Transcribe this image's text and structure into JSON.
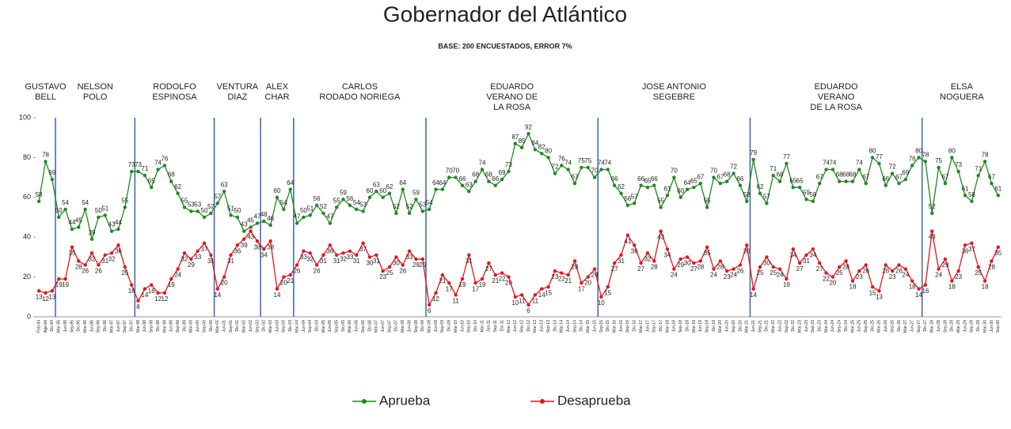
{
  "chart_data": {
    "type": "line",
    "title": "Gobernador del Atlántico",
    "subtitle": "BASE: 200 ENCUESTADOS, ERROR 7%",
    "periods": [
      [
        "GUSTAVO",
        "BELL"
      ],
      [
        "NELSON",
        "POLO"
      ],
      [
        "RODOLFO",
        "ESPINOSA"
      ],
      [
        "VENTURA",
        "DIAZ"
      ],
      [
        "ALEX",
        "CHAR"
      ],
      [
        "CARLOS",
        "RODADO NORIEGA"
      ],
      [
        "EDUARDO",
        "VERANO DE",
        "LA ROSA"
      ],
      [
        "JOSE ANTONIO",
        "SEGEBRE"
      ],
      [
        "EDUARDO",
        "VERANO",
        "DE LA ROSA"
      ],
      [
        "ELSA",
        "NOGUERA"
      ]
    ],
    "categories": [
      "Feb-94",
      "Ago-94",
      "Dic-94",
      "Mar-95",
      "Jun-95",
      "Sep-95",
      "Dic-95",
      "Mar-96",
      "Jun-96",
      "Sep-96",
      "Dic-96",
      "Mar-97",
      "Jun-97",
      "Sep-97",
      "Dic-97",
      "Mar-98",
      "Jun-98",
      "Sep-98",
      "Dic-98",
      "Mar-99",
      "Jun-99",
      "Sep-99",
      "Dic-99",
      "Mar-00",
      "Jun-00",
      "Sep-00",
      "Dic-00",
      "Mar-01",
      "Jun-01",
      "Sep-01",
      "Dic-01",
      "Mar-02",
      "Jun-02",
      "Sep-02",
      "Dic-02",
      "Mar-03",
      "Jun-03",
      "Sep-03",
      "Dic-03",
      "Mar-04",
      "Jun-04",
      "Sep-04",
      "Dic-04",
      "Mar-05",
      "Jun-05",
      "Sep-05",
      "Dic-05",
      "Mar-06",
      "Jun-06",
      "Sep-06",
      "Dic-06",
      "Mar-07",
      "Jun-07",
      "Sep-07",
      "Dic-07",
      "Mar-08",
      "Jun-08",
      "Sep-08",
      "Dic-08",
      "Mar-09",
      "Jun-09",
      "Sep-09",
      "Dic-09",
      "Mar-10",
      "Jun-10",
      "Sep-10",
      "Dic-10",
      "Mar-11",
      "Jun-11",
      "Sep-11",
      "Dic-11",
      "Mar-12",
      "Jun-12",
      "Sep-12",
      "Dic-12",
      "Mar-13",
      "Jun-13",
      "Sep-13",
      "Dic-13",
      "Mar-14",
      "Jun-14",
      "Sep-14",
      "Dic-14",
      "Mar-15",
      "Jun-15",
      "Sep-15",
      "Dic-15",
      "Mar-16",
      "Jun-16",
      "Sep-16",
      "Dic-16",
      "Mar-17",
      "Jun-17",
      "Sep-17",
      "Dic-17",
      "Mar-18",
      "Jun-18",
      "Sep-18",
      "Dic-18",
      "Mar-19",
      "Jun-19",
      "Sep-19",
      "Dic-19",
      "Mar-20",
      "Jun-20",
      "Sep-20",
      "Dic-20",
      "Mar-21",
      "Jun-21",
      "Sep-21",
      "Dic-21",
      "Mar-22",
      "Jun-22",
      "Sep-22",
      "Dic-22",
      "Mar-23",
      "Jun-23",
      "Sep-23",
      "Dic-23",
      "Mar-24",
      "Jun-24",
      "Sep-24",
      "Dic-24",
      "Mar-25",
      "Jun-25",
      "Sep-25",
      "Dic-25",
      "Mar-26",
      "Jun-26",
      "Sep-26",
      "Dic-26",
      "Mar-27",
      "Jun-27",
      "Sep-27",
      "Dic-27",
      "Mar-28",
      "Jun-28",
      "Sep-28",
      "Dic-28",
      "Mar-29",
      "Jun-29",
      "Sep-29",
      "Dic-29",
      "Mar-30",
      "Jun-30",
      "Sep-30"
    ],
    "series": [
      {
        "name": "Aprueba",
        "color": "#1e8a1e",
        "values": [
          58,
          78,
          69,
          50,
          54,
          44,
          45,
          54,
          39,
          50,
          51,
          43,
          44,
          55,
          73,
          73,
          71,
          65,
          74,
          76,
          68,
          62,
          55,
          53,
          53,
          50,
          52,
          57,
          63,
          51,
          50,
          43,
          45,
          47,
          48,
          46,
          60,
          54,
          64,
          47,
          50,
          51,
          56,
          52,
          47,
          55,
          59,
          56,
          54,
          53,
          60,
          63,
          60,
          62,
          52,
          64,
          52,
          59,
          53,
          54,
          64,
          64,
          70,
          70,
          66,
          63,
          68,
          74,
          68,
          66,
          69,
          73,
          87,
          85,
          92,
          84,
          82,
          80,
          72,
          76,
          74,
          67,
          75,
          75,
          70,
          74,
          74,
          66,
          62,
          56,
          57,
          66,
          65,
          66,
          55,
          61,
          70,
          60,
          64,
          65,
          67,
          55,
          70,
          67,
          68,
          72,
          66,
          58,
          79,
          62,
          57,
          71,
          68,
          77,
          65,
          65,
          59,
          58,
          67,
          74,
          74,
          68,
          68,
          68,
          74,
          67,
          80,
          77,
          66,
          72,
          67,
          69,
          76,
          80,
          78,
          52,
          75,
          67,
          80,
          73,
          61,
          58,
          71,
          78,
          67,
          61
        ]
      },
      {
        "name": "Desaprueba",
        "color": "#e8141a",
        "values": [
          13,
          12,
          13,
          19,
          19,
          35,
          28,
          26,
          32,
          26,
          31,
          32,
          36,
          25,
          16,
          8,
          14,
          16,
          12,
          12,
          19,
          24,
          32,
          29,
          33,
          37,
          31,
          14,
          20,
          31,
          36,
          39,
          43,
          38,
          34,
          38,
          14,
          20,
          21,
          26,
          33,
          32,
          26,
          31,
          36,
          31,
          32,
          33,
          31,
          37,
          30,
          31,
          23,
          25,
          30,
          26,
          33,
          29,
          29,
          6,
          12,
          21,
          17,
          11,
          19,
          31,
          17,
          19,
          27,
          21,
          22,
          20,
          10,
          11,
          6,
          11,
          14,
          15,
          23,
          22,
          21,
          28,
          17,
          20,
          24,
          10,
          15,
          27,
          31,
          41,
          36,
          27,
          32,
          28,
          43,
          34,
          24,
          29,
          30,
          27,
          28,
          35,
          24,
          28,
          23,
          24,
          26,
          36,
          14,
          25,
          30,
          25,
          24,
          19,
          34,
          27,
          31,
          34,
          27,
          22,
          20,
          25,
          28,
          18,
          23,
          26,
          15,
          13,
          26,
          23,
          26,
          24,
          18,
          14,
          16,
          43,
          24,
          29,
          18,
          23,
          36,
          37,
          25,
          18,
          28,
          35
        ]
      }
    ],
    "ylim": [
      0,
      100
    ],
    "yticks": [
      0,
      20,
      40,
      60,
      80,
      100
    ],
    "legend": "bottom"
  }
}
